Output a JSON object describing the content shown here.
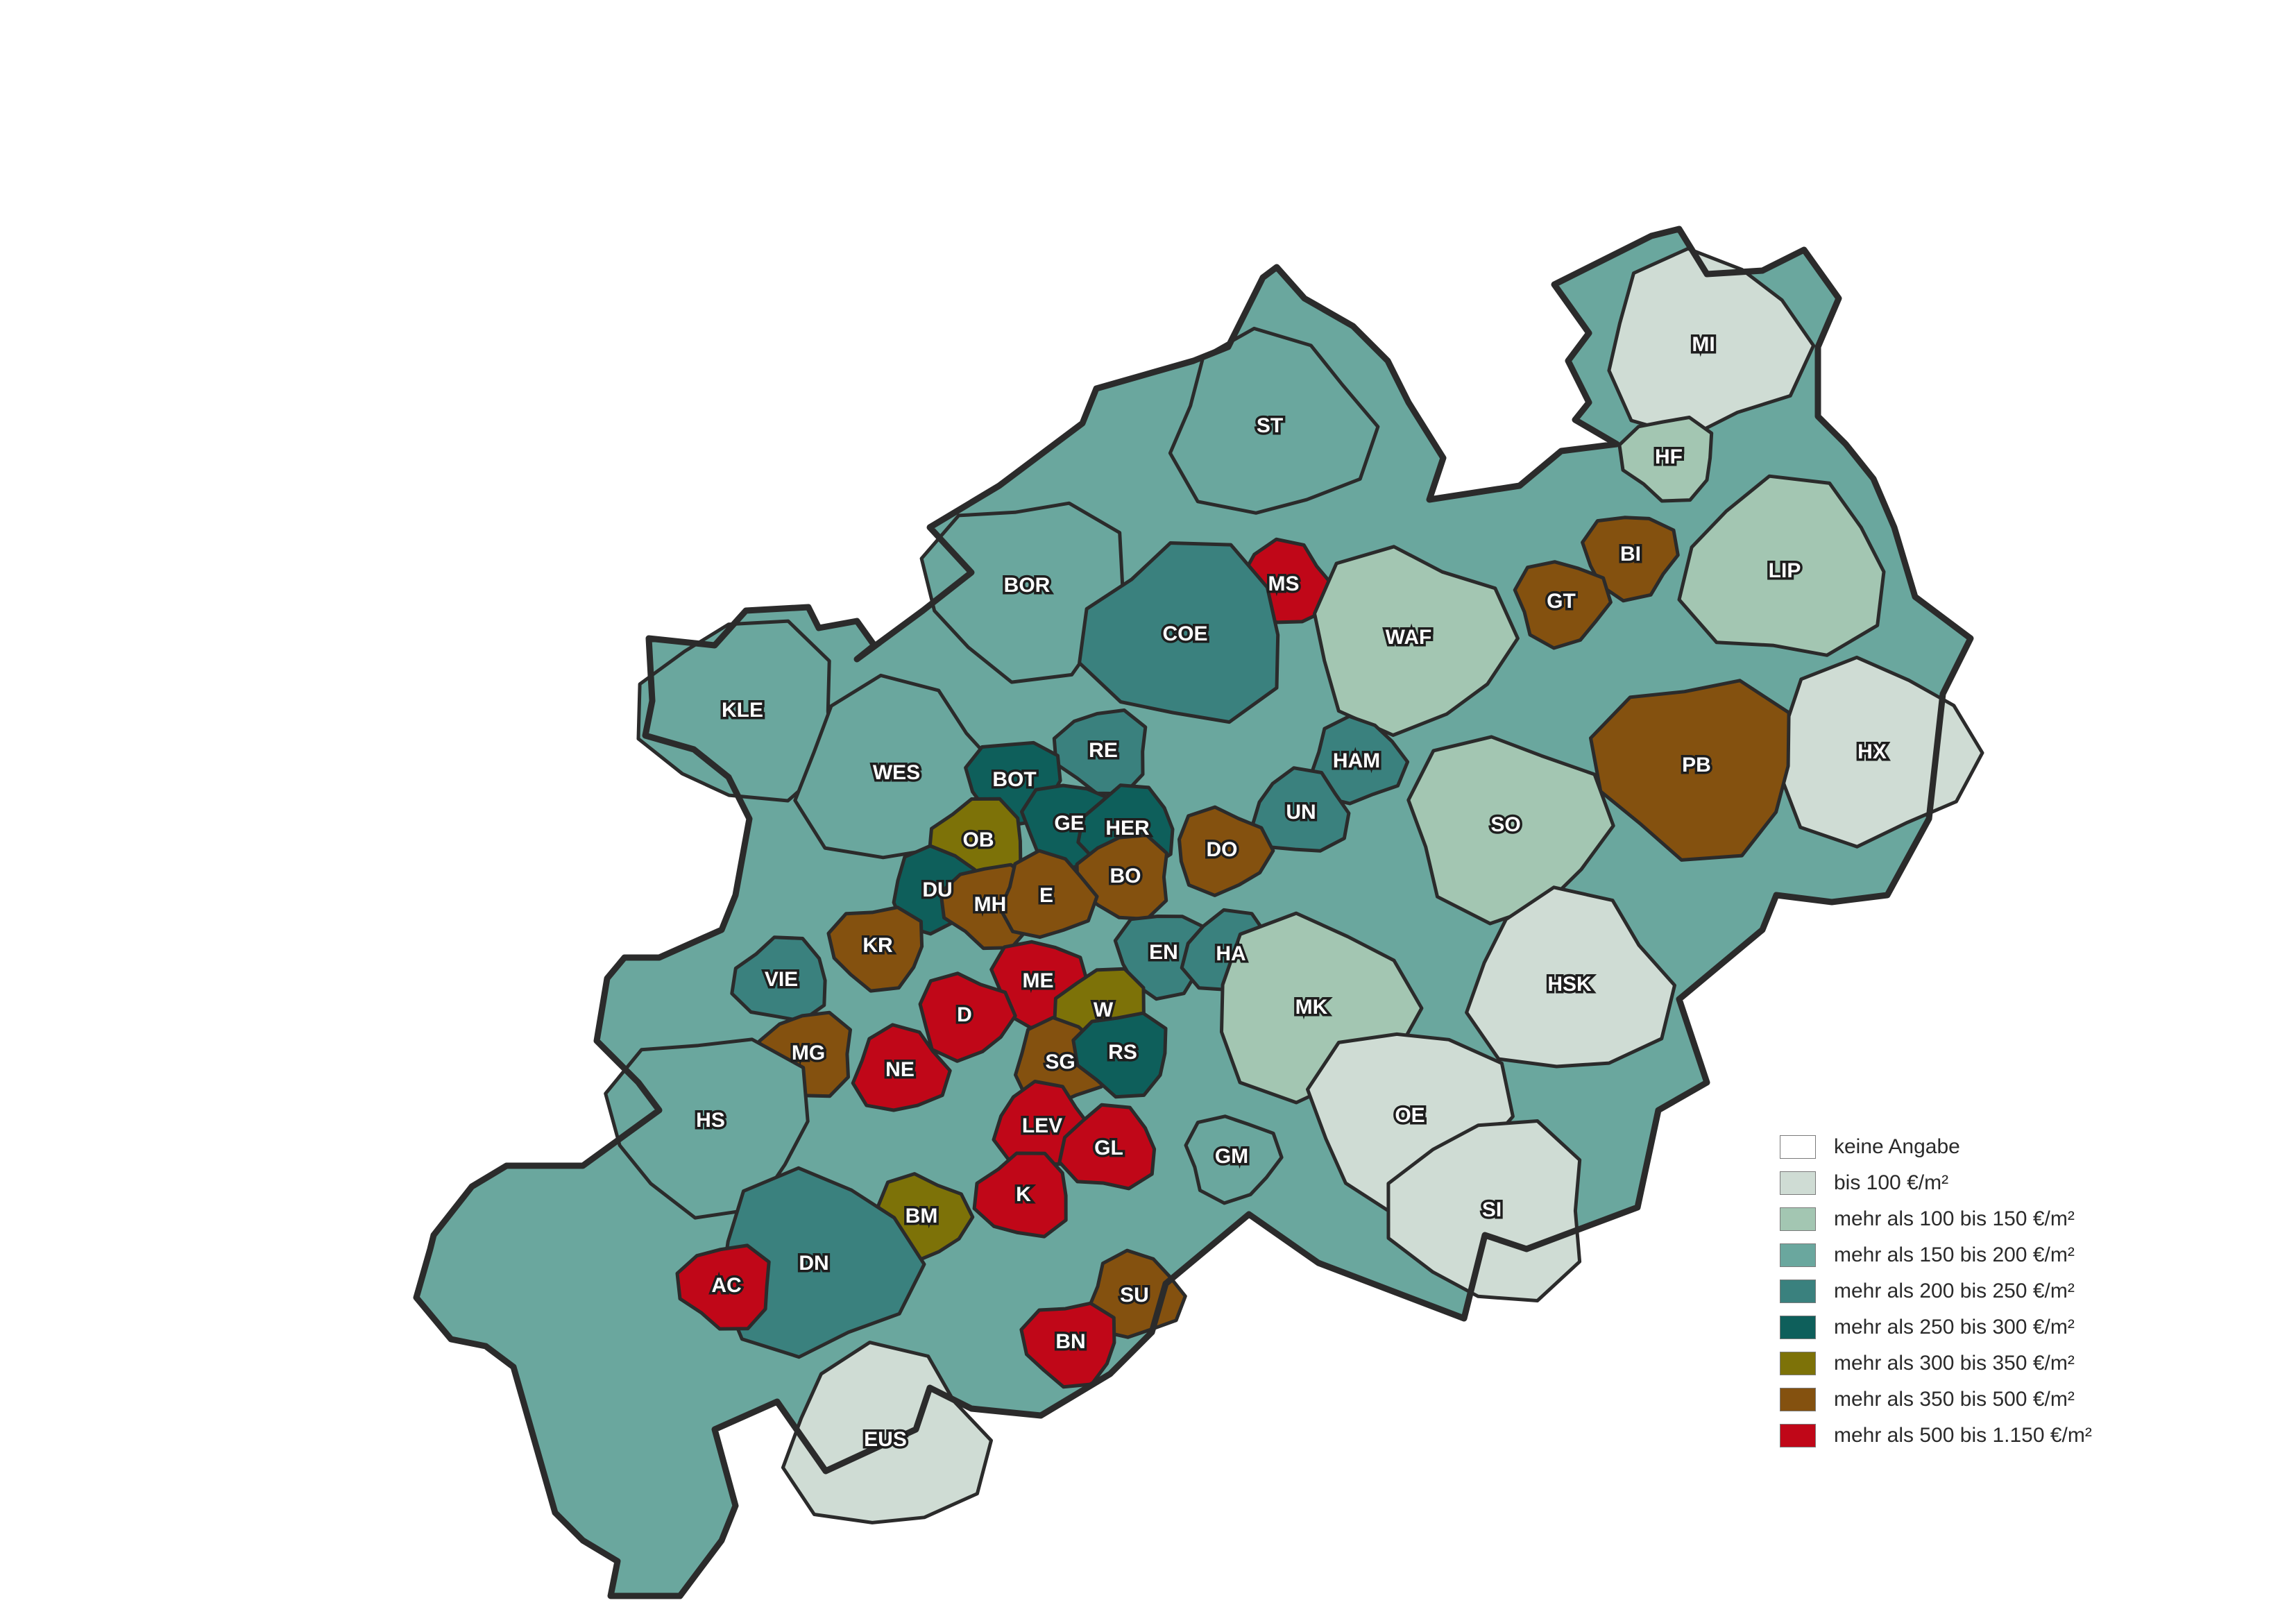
{
  "map": {
    "legend": [
      {
        "label": "keine Angabe",
        "color": "#ffffff"
      },
      {
        "label": "bis 100 €/m²",
        "color": "#cfdcd4"
      },
      {
        "label": "mehr als 100 bis 150 €/m²",
        "color": "#a3c6b2"
      },
      {
        "label": "mehr als 150 bis 200 €/m²",
        "color": "#6aa79e"
      },
      {
        "label": "mehr als 200 bis 250 €/m²",
        "color": "#3a817e"
      },
      {
        "label": "mehr als 250 bis 300 €/m²",
        "color": "#0e5f5b"
      },
      {
        "label": "mehr als 300 bis 350 €/m²",
        "color": "#7d7208"
      },
      {
        "label": "mehr als 350 bis 500 €/m²",
        "color": "#84510f"
      },
      {
        "label": "mehr als 500 bis 1.150 €/m²",
        "color": "#c00718"
      }
    ],
    "districts": [
      {
        "name": "MI",
        "class": 1
      },
      {
        "name": "HF",
        "class": 2
      },
      {
        "name": "ST",
        "class": 3
      },
      {
        "name": "BOR",
        "class": 3
      },
      {
        "name": "MS",
        "class": 8
      },
      {
        "name": "BI",
        "class": 7
      },
      {
        "name": "LIP",
        "class": 2
      },
      {
        "name": "GT",
        "class": 7
      },
      {
        "name": "COE",
        "class": 4
      },
      {
        "name": "WAF",
        "class": 2
      },
      {
        "name": "KLE",
        "class": 3
      },
      {
        "name": "HX",
        "class": 1
      },
      {
        "name": "RE",
        "class": 4
      },
      {
        "name": "HAM",
        "class": 4
      },
      {
        "name": "PB",
        "class": 7
      },
      {
        "name": "WES",
        "class": 3
      },
      {
        "name": "BOT",
        "class": 5
      },
      {
        "name": "UN",
        "class": 4
      },
      {
        "name": "GE",
        "class": 5
      },
      {
        "name": "HER",
        "class": 5
      },
      {
        "name": "SO",
        "class": 2
      },
      {
        "name": "OB",
        "class": 6
      },
      {
        "name": "DO",
        "class": 7
      },
      {
        "name": "BO",
        "class": 7
      },
      {
        "name": "DU",
        "class": 5
      },
      {
        "name": "MH",
        "class": 7
      },
      {
        "name": "E",
        "class": 7
      },
      {
        "name": "KR",
        "class": 7
      },
      {
        "name": "HSK",
        "class": 1
      },
      {
        "name": "EN",
        "class": 4
      },
      {
        "name": "HA",
        "class": 4
      },
      {
        "name": "ME",
        "class": 8
      },
      {
        "name": "VIE",
        "class": 4
      },
      {
        "name": "D",
        "class": 8
      },
      {
        "name": "W",
        "class": 6
      },
      {
        "name": "MK",
        "class": 2
      },
      {
        "name": "MG",
        "class": 7
      },
      {
        "name": "SG",
        "class": 7
      },
      {
        "name": "RS",
        "class": 5
      },
      {
        "name": "NE",
        "class": 8
      },
      {
        "name": "HS",
        "class": 3
      },
      {
        "name": "LEV",
        "class": 8
      },
      {
        "name": "OE",
        "class": 1
      },
      {
        "name": "GL",
        "class": 8
      },
      {
        "name": "GM",
        "class": 3
      },
      {
        "name": "K",
        "class": 8
      },
      {
        "name": "BM",
        "class": 6
      },
      {
        "name": "SI",
        "class": 1
      },
      {
        "name": "DN",
        "class": 4
      },
      {
        "name": "AC",
        "class": 8
      },
      {
        "name": "SU",
        "class": 7
      },
      {
        "name": "BN",
        "class": 8
      },
      {
        "name": "EUS",
        "class": 1
      }
    ]
  }
}
